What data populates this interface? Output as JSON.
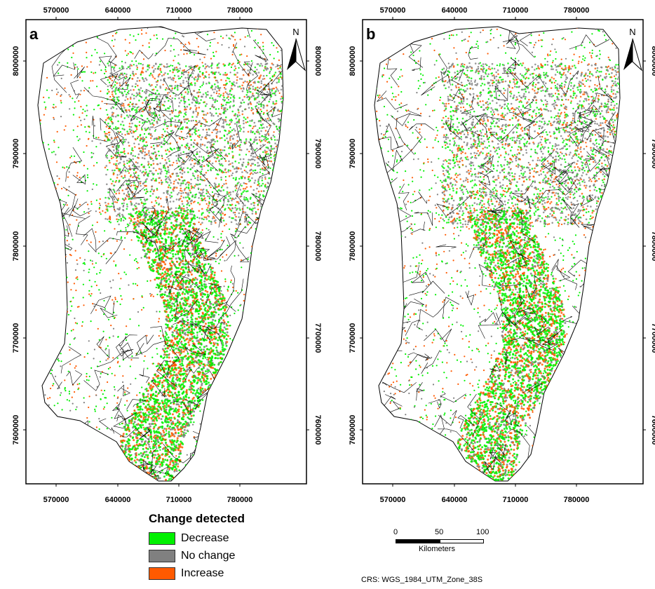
{
  "panels": [
    {
      "letter": "a",
      "x_ticks": [
        "570000",
        "640000",
        "710000",
        "780000"
      ],
      "y_ticks": [
        "8000000",
        "7900000",
        "7800000",
        "7700000",
        "7600000"
      ],
      "north": "N"
    },
    {
      "letter": "b",
      "x_ticks": [
        "570000",
        "640000",
        "710000",
        "780000"
      ],
      "y_ticks": [
        "8000000",
        "7900000",
        "7800000",
        "7700000",
        "7600000"
      ],
      "north": "N"
    }
  ],
  "legend": {
    "title": "Change detected",
    "items": [
      {
        "label": "Decrease",
        "color": "#00f100"
      },
      {
        "label": "No change",
        "color": "#808080"
      },
      {
        "label": "Increase",
        "color": "#ff5a00"
      }
    ]
  },
  "scalebar": {
    "labels": [
      "0",
      "50",
      "100"
    ],
    "unit": "Kilometers"
  },
  "crs": "CRS: WGS_1984_UTM_Zone_38S"
}
